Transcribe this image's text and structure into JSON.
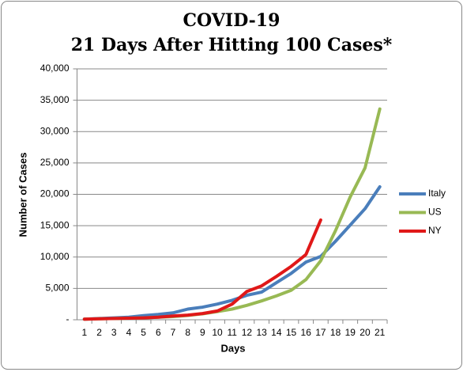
{
  "chart_data": {
    "type": "line",
    "title": "COVID-19",
    "subtitle": "21 Days After Hitting 100 Cases*",
    "x_label": "Days",
    "y_label": "Number of Cases",
    "categories": [
      "1",
      "2",
      "3",
      "4",
      "5",
      "6",
      "7",
      "8",
      "9",
      "10",
      "11",
      "12",
      "13",
      "14",
      "15",
      "16",
      "17",
      "18",
      "19",
      "20",
      "21"
    ],
    "series": [
      {
        "name": "Italy",
        "color": "#4a7ebb",
        "values": [
          100,
          200,
          300,
          400,
          650,
          850,
          1100,
          1700,
          2000,
          2500,
          3100,
          3900,
          4400,
          5900,
          7400,
          9200,
          10100,
          12500,
          15100,
          17700,
          21200
        ]
      },
      {
        "name": "US",
        "color": "#98b954",
        "values": [
          100,
          150,
          200,
          250,
          300,
          400,
          500,
          700,
          950,
          1300,
          1700,
          2300,
          3000,
          3800,
          4700,
          6400,
          9400,
          14200,
          19600,
          24200,
          33600
        ]
      },
      {
        "name": "NY",
        "color": "#e01818",
        "values": [
          100,
          150,
          200,
          250,
          300,
          400,
          600,
          750,
          1000,
          1400,
          2500,
          4500,
          5400,
          6900,
          8500,
          10400,
          15900,
          null,
          null,
          null,
          null
        ]
      }
    ],
    "ylim": [
      0,
      40000
    ],
    "yticks": [
      {
        "value": 0,
        "label": "-"
      },
      {
        "value": 5000,
        "label": "5,000"
      },
      {
        "value": 10000,
        "label": "10,000"
      },
      {
        "value": 15000,
        "label": "15,000"
      },
      {
        "value": 20000,
        "label": "20,000"
      },
      {
        "value": 25000,
        "label": "25,000"
      },
      {
        "value": 30000,
        "label": "30,000"
      },
      {
        "value": 35000,
        "label": "35,000"
      },
      {
        "value": 40000,
        "label": "40,000"
      }
    ],
    "grid": true,
    "legend": "right"
  }
}
